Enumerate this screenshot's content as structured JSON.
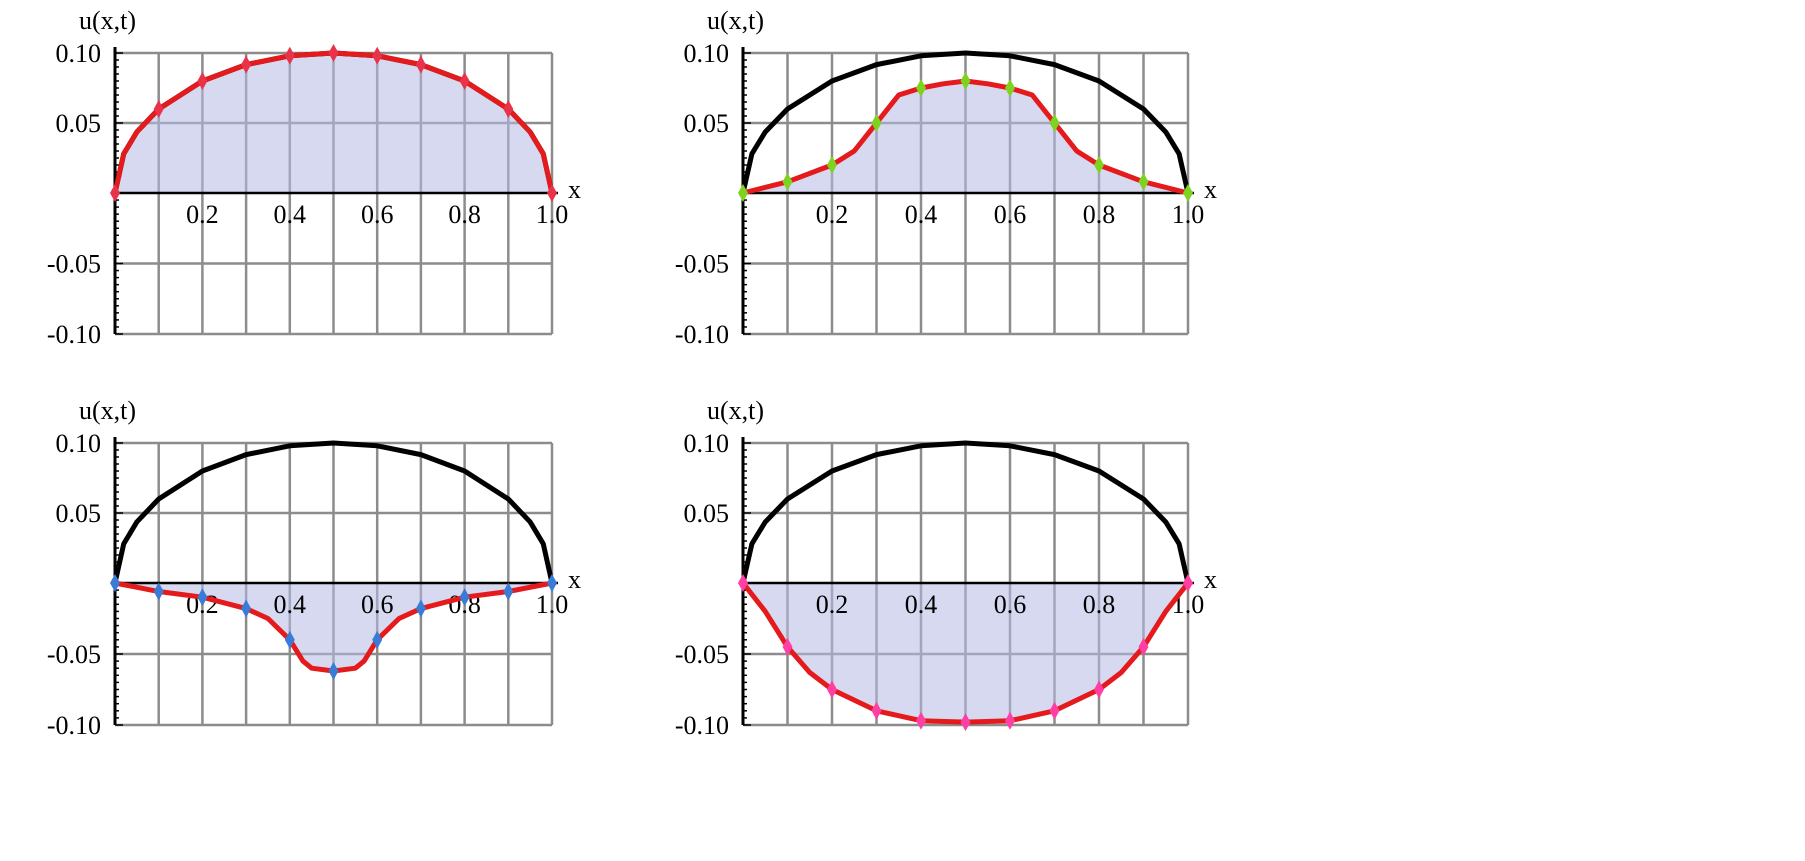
{
  "chart_data": [
    {
      "type": "line",
      "xlabel": "x",
      "ylabel": "u(x,t)",
      "xlim": [
        0,
        1
      ],
      "ylim": [
        -0.1,
        0.1
      ],
      "grid": true,
      "x_ticks": [
        "0.2",
        "0.4",
        "0.6",
        "0.8",
        "1.0"
      ],
      "y_ticks": [
        "0.10",
        "0.05",
        "-0.05",
        "-0.10"
      ],
      "marker_color": "#e8334a",
      "series": [
        {
          "color": "#000000",
          "x": [
            0,
            0.02,
            0.05,
            0.1,
            0.2,
            0.3,
            0.4,
            0.5,
            0.6,
            0.7,
            0.8,
            0.9,
            0.95,
            0.98,
            1.0
          ],
          "y": [
            0,
            0.028,
            0.0436,
            0.06,
            0.08,
            0.0917,
            0.098,
            0.1,
            0.098,
            0.0917,
            0.08,
            0.06,
            0.0436,
            0.028,
            0
          ]
        },
        {
          "color": "#e41a1c",
          "x": [
            0,
            0.02,
            0.05,
            0.1,
            0.2,
            0.3,
            0.4,
            0.5,
            0.6,
            0.7,
            0.8,
            0.9,
            0.95,
            0.98,
            1.0
          ],
          "y": [
            0,
            0.028,
            0.0436,
            0.06,
            0.08,
            0.0917,
            0.098,
            0.1,
            0.098,
            0.0917,
            0.08,
            0.06,
            0.0436,
            0.028,
            0
          ],
          "fill": true
        }
      ],
      "markers": {
        "x": [
          0,
          0.1,
          0.2,
          0.3,
          0.4,
          0.5,
          0.6,
          0.7,
          0.8,
          0.9,
          1.0
        ],
        "y": [
          0,
          0.06,
          0.08,
          0.0917,
          0.098,
          0.1,
          0.098,
          0.0917,
          0.08,
          0.06,
          0
        ]
      }
    },
    {
      "type": "line",
      "xlabel": "x",
      "ylabel": "u(x,t)",
      "xlim": [
        0,
        1
      ],
      "ylim": [
        -0.1,
        0.1
      ],
      "grid": true,
      "x_ticks": [
        "0.2",
        "0.4",
        "0.6",
        "0.8",
        "1.0"
      ],
      "y_ticks": [
        "0.10",
        "0.05",
        "-0.05",
        "-0.10"
      ],
      "marker_color": "#7ed321",
      "series": [
        {
          "color": "#000000",
          "x": [
            0,
            0.02,
            0.05,
            0.1,
            0.2,
            0.3,
            0.4,
            0.5,
            0.6,
            0.7,
            0.8,
            0.9,
            0.95,
            0.98,
            1.0
          ],
          "y": [
            0,
            0.028,
            0.0436,
            0.06,
            0.08,
            0.0917,
            0.098,
            0.1,
            0.098,
            0.0917,
            0.08,
            0.06,
            0.0436,
            0.028,
            0
          ]
        },
        {
          "color": "#e41a1c",
          "x": [
            0,
            0.1,
            0.2,
            0.25,
            0.3,
            0.35,
            0.4,
            0.45,
            0.5,
            0.55,
            0.6,
            0.65,
            0.7,
            0.75,
            0.8,
            0.9,
            1.0
          ],
          "y": [
            0,
            0.008,
            0.02,
            0.03,
            0.05,
            0.07,
            0.075,
            0.078,
            0.08,
            0.078,
            0.075,
            0.07,
            0.05,
            0.03,
            0.02,
            0.008,
            0
          ],
          "fill": true
        }
      ],
      "markers": {
        "x": [
          0,
          0.1,
          0.2,
          0.3,
          0.4,
          0.5,
          0.6,
          0.7,
          0.8,
          0.9,
          1.0
        ],
        "y": [
          0,
          0.008,
          0.02,
          0.05,
          0.075,
          0.08,
          0.075,
          0.05,
          0.02,
          0.008,
          0
        ]
      }
    },
    {
      "type": "line",
      "xlabel": "x",
      "ylabel": "u(x,t)",
      "xlim": [
        0,
        1
      ],
      "ylim": [
        -0.1,
        0.1
      ],
      "grid": true,
      "x_ticks": [
        "0.2",
        "0.4",
        "0.6",
        "0.8",
        "1.0"
      ],
      "y_ticks": [
        "0.10",
        "0.05",
        "-0.05",
        "-0.10"
      ],
      "marker_color": "#3a7bd5",
      "series": [
        {
          "color": "#000000",
          "x": [
            0,
            0.02,
            0.05,
            0.1,
            0.2,
            0.3,
            0.4,
            0.5,
            0.6,
            0.7,
            0.8,
            0.9,
            0.95,
            0.98,
            1.0
          ],
          "y": [
            0,
            0.028,
            0.0436,
            0.06,
            0.08,
            0.0917,
            0.098,
            0.1,
            0.098,
            0.0917,
            0.08,
            0.06,
            0.0436,
            0.028,
            0
          ]
        },
        {
          "color": "#e41a1c",
          "x": [
            0,
            0.1,
            0.2,
            0.3,
            0.35,
            0.4,
            0.43,
            0.45,
            0.5,
            0.55,
            0.57,
            0.6,
            0.65,
            0.7,
            0.8,
            0.9,
            1.0
          ],
          "y": [
            0,
            -0.006,
            -0.01,
            -0.018,
            -0.025,
            -0.04,
            -0.055,
            -0.06,
            -0.062,
            -0.06,
            -0.055,
            -0.04,
            -0.025,
            -0.018,
            -0.01,
            -0.006,
            0
          ],
          "fill": true
        }
      ],
      "markers": {
        "x": [
          0,
          0.1,
          0.2,
          0.3,
          0.4,
          0.5,
          0.6,
          0.7,
          0.8,
          0.9,
          1.0
        ],
        "y": [
          0,
          -0.006,
          -0.01,
          -0.018,
          -0.04,
          -0.062,
          -0.04,
          -0.018,
          -0.01,
          -0.006,
          0
        ]
      }
    },
    {
      "type": "line",
      "xlabel": "x",
      "ylabel": "u(x,t)",
      "xlim": [
        0,
        1
      ],
      "ylim": [
        -0.1,
        0.1
      ],
      "grid": true,
      "x_ticks": [
        "0.2",
        "0.4",
        "0.6",
        "0.8",
        "1.0"
      ],
      "y_ticks": [
        "0.10",
        "0.05",
        "-0.05",
        "-0.10"
      ],
      "marker_color": "#ff3fa4",
      "series": [
        {
          "color": "#000000",
          "x": [
            0,
            0.02,
            0.05,
            0.1,
            0.2,
            0.3,
            0.4,
            0.5,
            0.6,
            0.7,
            0.8,
            0.9,
            0.95,
            0.98,
            1.0
          ],
          "y": [
            0,
            0.028,
            0.0436,
            0.06,
            0.08,
            0.0917,
            0.098,
            0.1,
            0.098,
            0.0917,
            0.08,
            0.06,
            0.0436,
            0.028,
            0
          ]
        },
        {
          "color": "#e41a1c",
          "x": [
            0,
            0.05,
            0.1,
            0.15,
            0.2,
            0.3,
            0.4,
            0.5,
            0.6,
            0.7,
            0.8,
            0.85,
            0.9,
            0.95,
            1.0
          ],
          "y": [
            0,
            -0.02,
            -0.045,
            -0.063,
            -0.075,
            -0.09,
            -0.097,
            -0.098,
            -0.097,
            -0.09,
            -0.075,
            -0.063,
            -0.045,
            -0.02,
            0
          ],
          "fill": true
        }
      ],
      "markers": {
        "x": [
          0,
          0.1,
          0.2,
          0.3,
          0.4,
          0.5,
          0.6,
          0.7,
          0.8,
          0.9,
          1.0
        ],
        "y": [
          0,
          -0.045,
          -0.075,
          -0.09,
          -0.097,
          -0.098,
          -0.097,
          -0.09,
          -0.075,
          -0.045,
          0
        ]
      }
    }
  ]
}
